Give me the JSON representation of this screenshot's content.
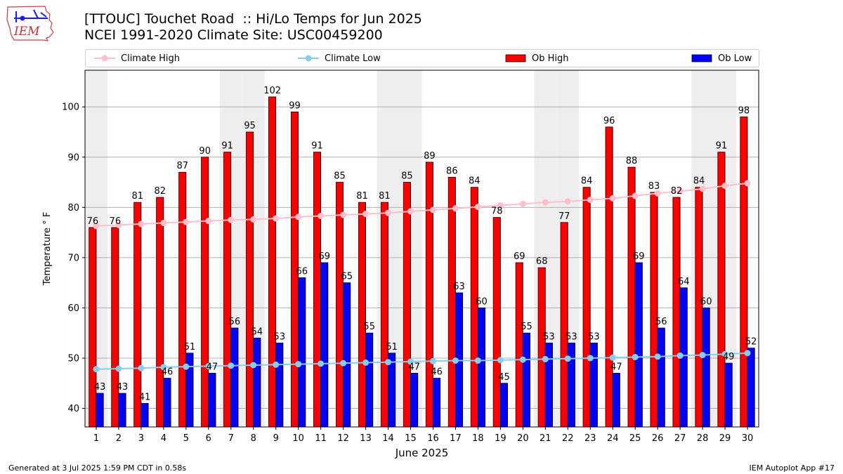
{
  "logo": {
    "text": "IEM",
    "icon": "iowa-iem-logo"
  },
  "title": {
    "line1": "[TTOUC] Touchet Road  :: Hi/Lo Temps for Jun 2025",
    "line2": "NCEI 1991-2020 Climate Site: USC00459200"
  },
  "legend": {
    "climate_high": "Climate High",
    "climate_low": "Climate Low",
    "ob_high": "Ob High",
    "ob_low": "Ob Low"
  },
  "colors": {
    "ob_high": "#ff0000",
    "ob_low": "#0000ff",
    "climate_high": "#ffc0cb",
    "climate_low": "#87ceeb",
    "weekend_shade": "#eeeeee",
    "grid": "#b0b0b0"
  },
  "footer": {
    "left": "Generated at 3 Jul 2025 1:59 PM CDT in 0.58s",
    "right": "IEM Autoplot App #17"
  },
  "chart_data": {
    "type": "bar",
    "xlabel": "June 2025",
    "ylabel": "Temperature ° F",
    "ylim": [
      36.3,
      107.3
    ],
    "yticks": [
      40,
      50,
      60,
      70,
      80,
      90,
      100
    ],
    "grid": "horizontal",
    "legend_position": "top",
    "categories": [
      "1",
      "2",
      "3",
      "4",
      "5",
      "6",
      "7",
      "8",
      "9",
      "10",
      "11",
      "12",
      "13",
      "14",
      "15",
      "16",
      "17",
      "18",
      "19",
      "20",
      "21",
      "22",
      "23",
      "24",
      "25",
      "26",
      "27",
      "28",
      "29",
      "30"
    ],
    "shaded_days": [
      1,
      7,
      8,
      14,
      15,
      21,
      22,
      28,
      29
    ],
    "series": [
      {
        "name": "Ob High",
        "kind": "bar",
        "values": [
          76,
          76,
          81,
          82,
          87,
          90,
          91,
          95,
          102,
          99,
          91,
          85,
          81,
          81,
          85,
          89,
          86,
          84,
          78,
          69,
          68,
          77,
          84,
          96,
          88,
          83,
          82,
          84,
          91,
          98
        ]
      },
      {
        "name": "Ob Low",
        "kind": "bar",
        "values": [
          43,
          43,
          41,
          46,
          51,
          47,
          56,
          54,
          53,
          66,
          69,
          65,
          55,
          51,
          47,
          46,
          63,
          60,
          45,
          55,
          53,
          53,
          53,
          47,
          69,
          56,
          64,
          60,
          49,
          52
        ]
      },
      {
        "name": "Climate High",
        "kind": "line",
        "values": [
          76.3,
          76.5,
          76.7,
          76.9,
          77.1,
          77.3,
          77.5,
          77.6,
          77.8,
          78.1,
          78.3,
          78.5,
          78.7,
          78.9,
          79.2,
          79.5,
          79.8,
          80.1,
          80.4,
          80.7,
          81.0,
          81.2,
          81.5,
          81.8,
          82.3,
          82.8,
          83.2,
          83.7,
          84.3,
          84.8
        ]
      },
      {
        "name": "Climate Low",
        "kind": "line",
        "values": [
          47.8,
          47.9,
          48.0,
          48.2,
          48.3,
          48.4,
          48.5,
          48.6,
          48.7,
          48.8,
          48.9,
          49.0,
          49.1,
          49.2,
          49.3,
          49.4,
          49.5,
          49.5,
          49.6,
          49.7,
          49.8,
          49.9,
          50.0,
          50.1,
          50.2,
          50.3,
          50.5,
          50.6,
          50.8,
          51.0
        ]
      }
    ]
  }
}
